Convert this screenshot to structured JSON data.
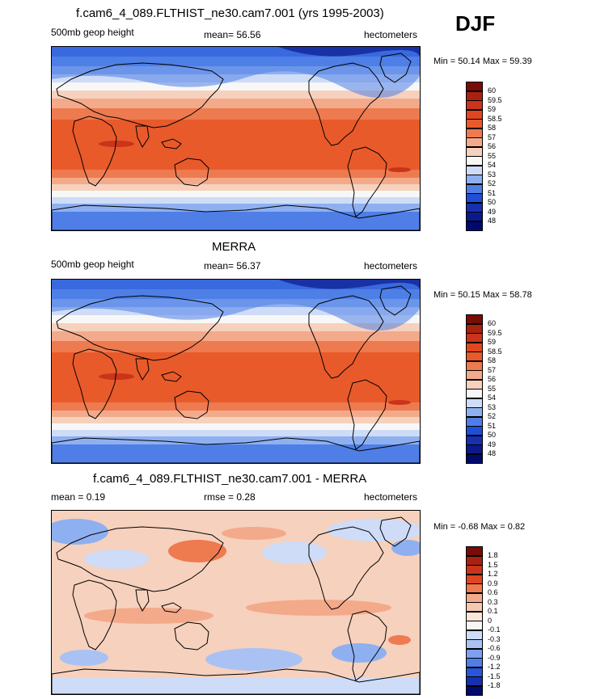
{
  "season": "DJF",
  "colors": {
    "deep_blue": "#0a1a8c",
    "blue": "#1f4fd6",
    "mid_blue": "#4f7fe6",
    "light_blue": "#8fb0f0",
    "pale_blue": "#cfdcf7",
    "white": "#f7f7f7",
    "pale_orange": "#f6d1bd",
    "light_orange": "#f3aa8a",
    "mid_orange": "#ee7a50",
    "orange": "#e95a2a",
    "deep_red": "#9c1a0d"
  },
  "panels": [
    {
      "title": "f.cam6_4_089.FLTHIST_ne30.cam7.001 (yrs 1995-2003)",
      "left_label": "500mb geop height",
      "center_label": "mean=  56.56",
      "right_label": "hectometers",
      "minmax": "Min =  50.14 Max =  59.39",
      "map_name": "model-map",
      "map_type": "absolute"
    },
    {
      "title": "MERRA",
      "left_label": "500mb geop height",
      "center_label": "mean=  56.37",
      "right_label": "hectometers",
      "minmax": "Min =  50.15 Max =  58.78",
      "map_name": "obs-map",
      "map_type": "absolute"
    },
    {
      "title": "f.cam6_4_089.FLTHIST_ne30.cam7.001 - MERRA",
      "left_label": "mean =   0.19",
      "center_label": "rmse =   0.28",
      "right_label": "hectometers",
      "minmax": "Min =  -0.68 Max =   0.82",
      "map_name": "difference-map",
      "map_type": "difference"
    }
  ],
  "colorbars": {
    "absolute": {
      "levels": [
        "60",
        "59.5",
        "59",
        "58.5",
        "58",
        "57",
        "56",
        "55",
        "54",
        "53",
        "52",
        "51",
        "50",
        "49",
        "48"
      ],
      "colors": [
        "#7a0b05",
        "#a8220f",
        "#c9341a",
        "#e0461f",
        "#e95a2a",
        "#ee7a50",
        "#f3aa8a",
        "#f6d1bd",
        "#f7f7f7",
        "#cfdcf7",
        "#8fb0f0",
        "#4f7fe6",
        "#1f4fd6",
        "#1630b0",
        "#0a1a8c",
        "#000a6e"
      ]
    },
    "difference": {
      "levels": [
        "1.8",
        "1.5",
        "1.2",
        "0.9",
        "0.6",
        "0.3",
        "0.1",
        "0",
        "-0.1",
        "-0.3",
        "-0.6",
        "-0.9",
        "-1.2",
        "-1.5",
        "-1.8"
      ],
      "colors": [
        "#7a0b05",
        "#a8220f",
        "#c9341a",
        "#e0461f",
        "#ee7a50",
        "#f3aa8a",
        "#f6c8b0",
        "#fbe6da",
        "#f7f7f7",
        "#cfdcf7",
        "#a9c2f3",
        "#7f9ff0",
        "#4f7fe6",
        "#2a55d8",
        "#1630b0",
        "#000a6e"
      ]
    }
  }
}
